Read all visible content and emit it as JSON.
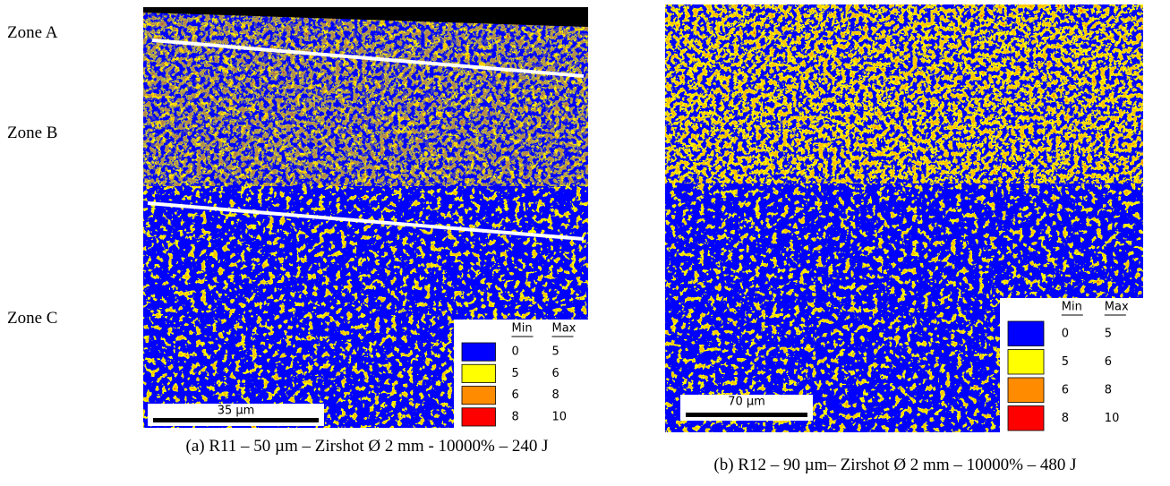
{
  "zone_labels": [
    "Zone A",
    "Zone B",
    "Zone C"
  ],
  "panels": [
    {
      "caption": "(a) R11 – 50 µm – Zirshot Ø 2 mm - 10000% – 240 J",
      "scale_bar": "35 µm",
      "legend": {
        "headers": [
          "Min",
          "Max"
        ],
        "rows": [
          {
            "min": 0,
            "max": 5,
            "color": "#0000ff"
          },
          {
            "min": 5,
            "max": 6,
            "color": "#ffff00"
          },
          {
            "min": 6,
            "max": 8,
            "color": "#ff8c00"
          },
          {
            "min": 8,
            "max": 10,
            "color": "#ff0000"
          }
        ]
      }
    },
    {
      "caption": "(b) R12 – 90 µm– Zirshot Ø 2 mm – 10000% – 480 J",
      "scale_bar": "70 µm",
      "legend": {
        "headers": [
          "Min",
          "Max"
        ],
        "rows": [
          {
            "min": 0,
            "max": 5,
            "color": "#0000ff"
          },
          {
            "min": 5,
            "max": 6,
            "color": "#ffff00"
          },
          {
            "min": 6,
            "max": 8,
            "color": "#ff8c00"
          },
          {
            "min": 8,
            "max": 10,
            "color": "#ff0000"
          }
        ]
      }
    }
  ]
}
